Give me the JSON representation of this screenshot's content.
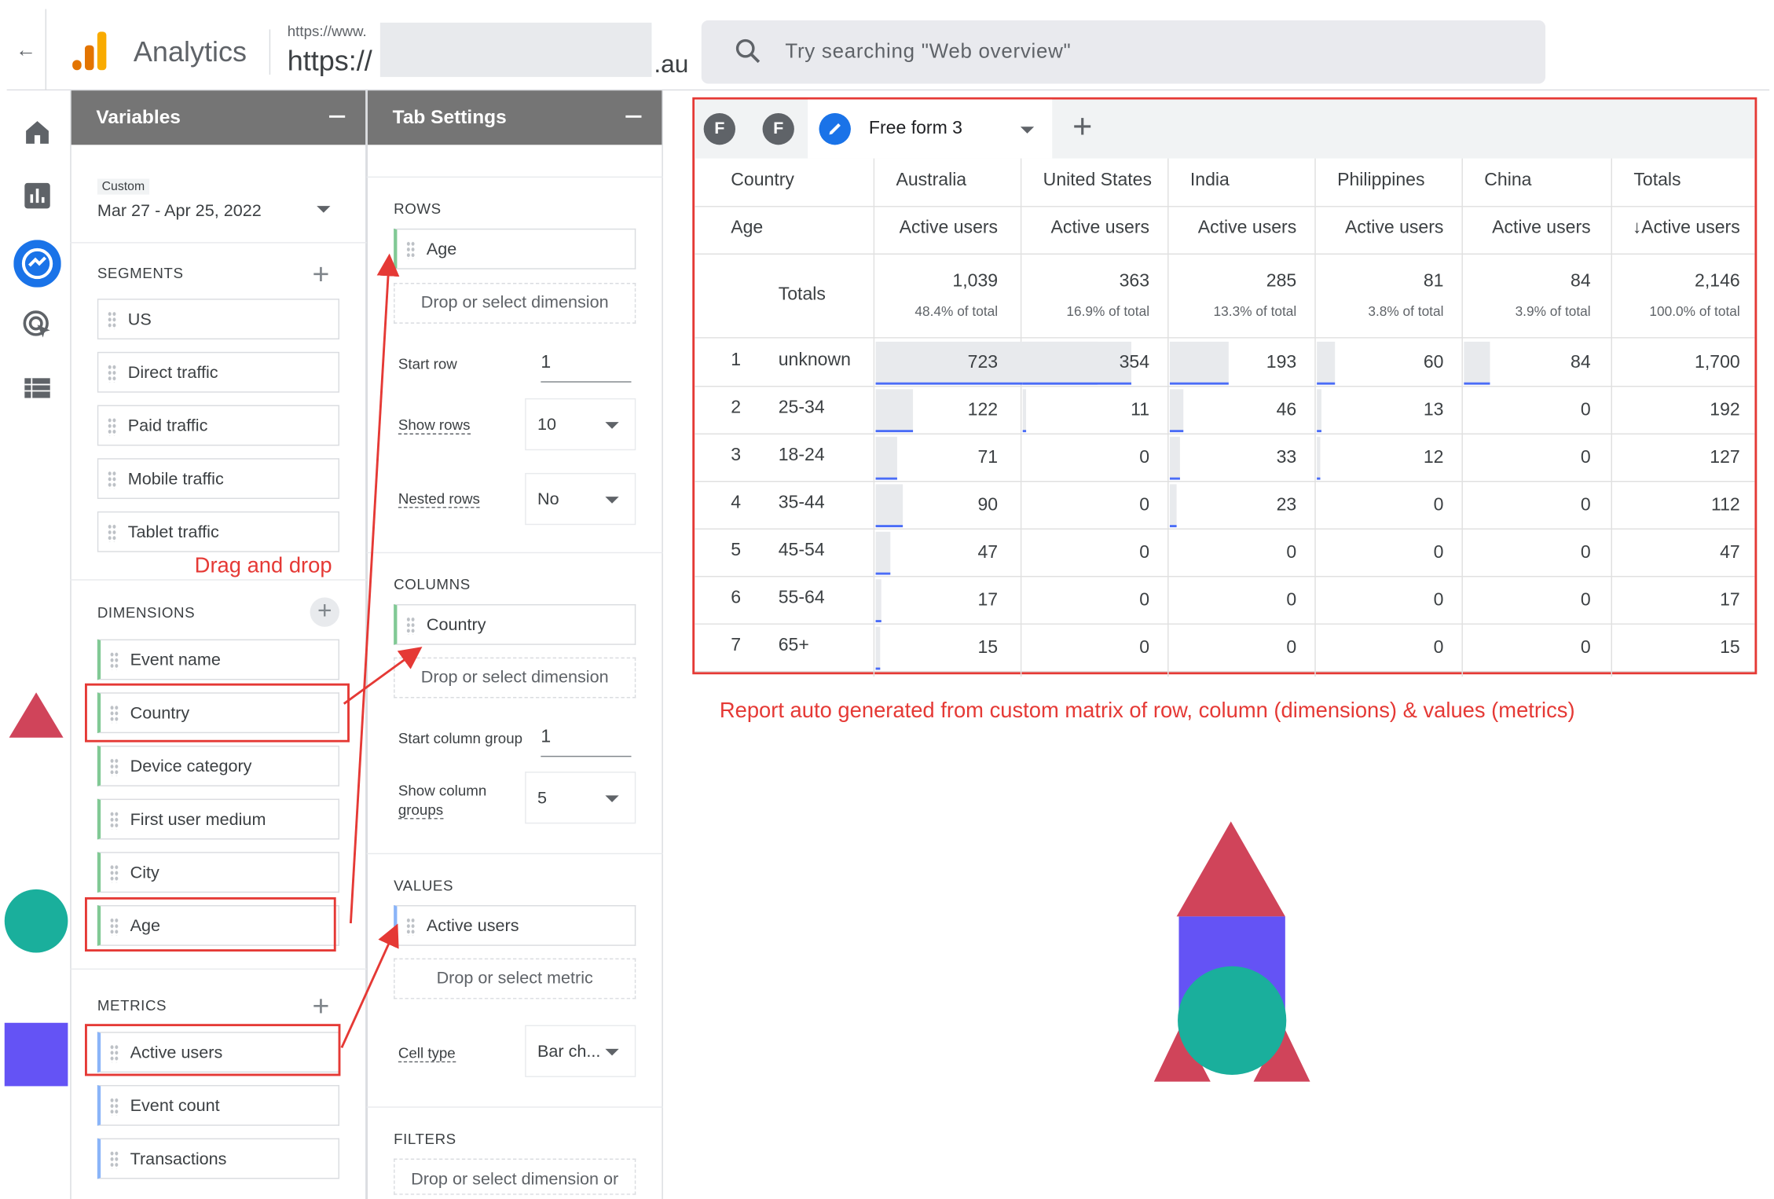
{
  "header": {
    "back_icon": "arrow-left-icon",
    "app_title": "Analytics",
    "account_small": "https://www.",
    "account_big": "https://",
    "account_tld": ".au",
    "search_placeholder": "Try searching \"Web overview\""
  },
  "nav_rail": [
    "home-icon",
    "reports-icon",
    "explore-icon",
    "advertising-icon",
    "configure-icon"
  ],
  "variables_panel": {
    "title": "Variables",
    "date_label": "Custom",
    "date_range": "Mar 27 - Apr 25, 2022",
    "segments_title": "SEGMENTS",
    "segments": [
      "US",
      "Direct traffic",
      "Paid traffic",
      "Mobile traffic",
      "Tablet traffic"
    ],
    "dimensions_title": "DIMENSIONS",
    "dimensions": [
      "Event name",
      "Country",
      "Device category",
      "First user medium",
      "City",
      "Age"
    ],
    "metrics_title": "METRICS",
    "metrics": [
      "Active users",
      "Event count",
      "Transactions"
    ]
  },
  "tab_settings": {
    "title": "Tab Settings",
    "rows_title": "ROWS",
    "row_dimension": "Age",
    "drop_dimension": "Drop or select dimension",
    "start_row_label": "Start row",
    "start_row_value": "1",
    "show_rows_label": "Show rows",
    "show_rows_value": "10",
    "nested_rows_label": "Nested rows",
    "nested_rows_value": "No",
    "columns_title": "COLUMNS",
    "column_dimension": "Country",
    "start_column_group_label": "Start column group",
    "start_column_group_value": "1",
    "show_column_groups_label_1": "Show column",
    "show_column_groups_label_2": "groups",
    "show_column_groups_value": "5",
    "values_title": "VALUES",
    "value_metric": "Active users",
    "drop_metric": "Drop or select metric",
    "cell_type_label": "Cell type",
    "cell_type_value": "Bar ch...",
    "filters_title": "FILTERS",
    "drop_filter": "Drop or select dimension or"
  },
  "report": {
    "tab_badges": [
      "F",
      "F"
    ],
    "active_tab": "Free form 3",
    "country_header": "Country",
    "age_header": "Age",
    "countries": [
      "Australia",
      "United States",
      "India",
      "Philippines",
      "China",
      "Totals"
    ],
    "metric_header": "Active users",
    "sorted_metric_header": "↓Active users",
    "totals_label": "Totals",
    "totals": [
      "1,039",
      "363",
      "285",
      "81",
      "84",
      "2,146"
    ],
    "totals_pct": [
      "48.4% of total",
      "16.9% of total",
      "13.3% of total",
      "3.8% of total",
      "3.9% of total",
      "100.0% of total"
    ],
    "rows": [
      {
        "idx": "1",
        "age": "unknown",
        "values": [
          "723",
          "354",
          "193",
          "60",
          "84",
          "1,700"
        ]
      },
      {
        "idx": "2",
        "age": "25-34",
        "values": [
          "122",
          "11",
          "46",
          "13",
          "0",
          "192"
        ]
      },
      {
        "idx": "3",
        "age": "18-24",
        "values": [
          "71",
          "0",
          "33",
          "12",
          "0",
          "127"
        ]
      },
      {
        "idx": "4",
        "age": "35-44",
        "values": [
          "90",
          "0",
          "23",
          "0",
          "0",
          "112"
        ]
      },
      {
        "idx": "5",
        "age": "45-54",
        "values": [
          "47",
          "0",
          "0",
          "0",
          "0",
          "47"
        ]
      },
      {
        "idx": "6",
        "age": "55-64",
        "values": [
          "17",
          "0",
          "0",
          "0",
          "0",
          "17"
        ]
      },
      {
        "idx": "7",
        "age": "65+",
        "values": [
          "15",
          "0",
          "0",
          "0",
          "0",
          "15"
        ]
      }
    ]
  },
  "annotations": {
    "drag_and_drop": "Drag and drop",
    "caption": "Report auto generated from custom matrix of row, column (dimensions) & values (metrics)"
  },
  "colors": {
    "accent_red": "#e53935",
    "shape_red": "#d0445a",
    "shape_teal": "#1aaf9c",
    "shape_purple": "#6453f5",
    "ga_orange": "#f9ab00",
    "ga_dark_orange": "#e37400",
    "bar_blue": "#4a6cf7"
  }
}
